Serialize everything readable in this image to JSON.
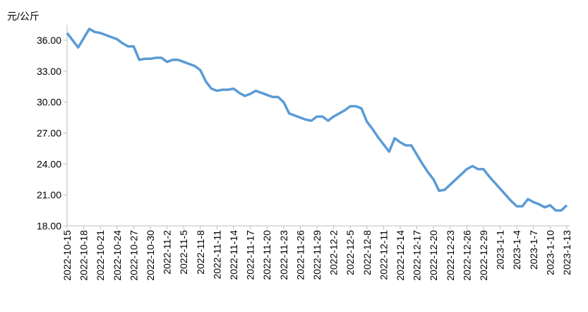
{
  "chart_data": {
    "type": "line",
    "y_axis_label": "元/公斤",
    "categories": [
      "2022-10-15",
      null,
      null,
      "2022-10-18",
      null,
      null,
      "2022-10-21",
      null,
      null,
      "2022-10-24",
      null,
      null,
      "2022-10-27",
      null,
      null,
      "2022-10-30",
      null,
      null,
      "2022-11-2",
      null,
      null,
      "2022-11-5",
      null,
      null,
      "2022-11-8",
      null,
      null,
      "2022-11-11",
      null,
      null,
      "2022-11-14",
      null,
      null,
      "2022-11-17",
      null,
      null,
      "2022-11-20",
      null,
      null,
      "2022-11-23",
      null,
      null,
      "2022-11-26",
      null,
      null,
      "2022-11-29",
      null,
      null,
      "2022-12-2",
      null,
      null,
      "2022-12-5",
      null,
      null,
      "2022-12-8",
      null,
      null,
      "2022-12-11",
      null,
      null,
      "2022-12-14",
      null,
      null,
      "2022-12-17",
      null,
      null,
      "2022-12-20",
      null,
      null,
      "2022-12-23",
      null,
      null,
      "2022-12-26",
      null,
      null,
      "2022-12-29",
      null,
      null,
      "2023-1-1",
      null,
      null,
      "2023-1-4",
      null,
      null,
      "2023-1-7",
      null,
      null,
      "2023-1-10",
      null,
      null,
      "2023-1-13"
    ],
    "series": [
      {
        "color": "#5b9bd5",
        "values": [
          36.7,
          36.0,
          35.3,
          36.2,
          37.1,
          36.8,
          36.7,
          36.5,
          36.3,
          36.1,
          35.7,
          35.4,
          35.4,
          34.1,
          34.2,
          34.2,
          34.3,
          34.3,
          33.9,
          34.1,
          34.1,
          33.9,
          33.7,
          33.5,
          33.1,
          32.0,
          31.3,
          31.1,
          31.2,
          31.2,
          31.3,
          30.9,
          30.6,
          30.8,
          31.1,
          30.9,
          30.7,
          30.5,
          30.5,
          30.0,
          28.9,
          28.7,
          28.5,
          28.3,
          28.2,
          28.6,
          28.6,
          28.2,
          28.6,
          28.9,
          29.2,
          29.6,
          29.6,
          29.4,
          28.1,
          27.4,
          26.6,
          25.9,
          25.2,
          26.5,
          26.1,
          25.8,
          25.8,
          24.9,
          24.0,
          23.2,
          22.5,
          21.4,
          21.5,
          22.0,
          22.5,
          23.0,
          23.5,
          23.8,
          23.5,
          23.5,
          22.8,
          22.2,
          21.6,
          21.0,
          20.4,
          19.9,
          19.9,
          20.6,
          20.3,
          20.1,
          19.8,
          20.0,
          19.5,
          19.5,
          20.0
        ]
      }
    ],
    "ylim": [
      18,
      37.5
    ],
    "yticks": [
      {
        "value": 18,
        "label": "18.00"
      },
      {
        "value": 21,
        "label": "21.00"
      },
      {
        "value": 24,
        "label": "24.00"
      },
      {
        "value": 27,
        "label": "27.00"
      },
      {
        "value": 30,
        "label": "30.00"
      },
      {
        "value": 33,
        "label": "33.00"
      },
      {
        "value": 36,
        "label": "36.00"
      }
    ],
    "grid": false
  }
}
